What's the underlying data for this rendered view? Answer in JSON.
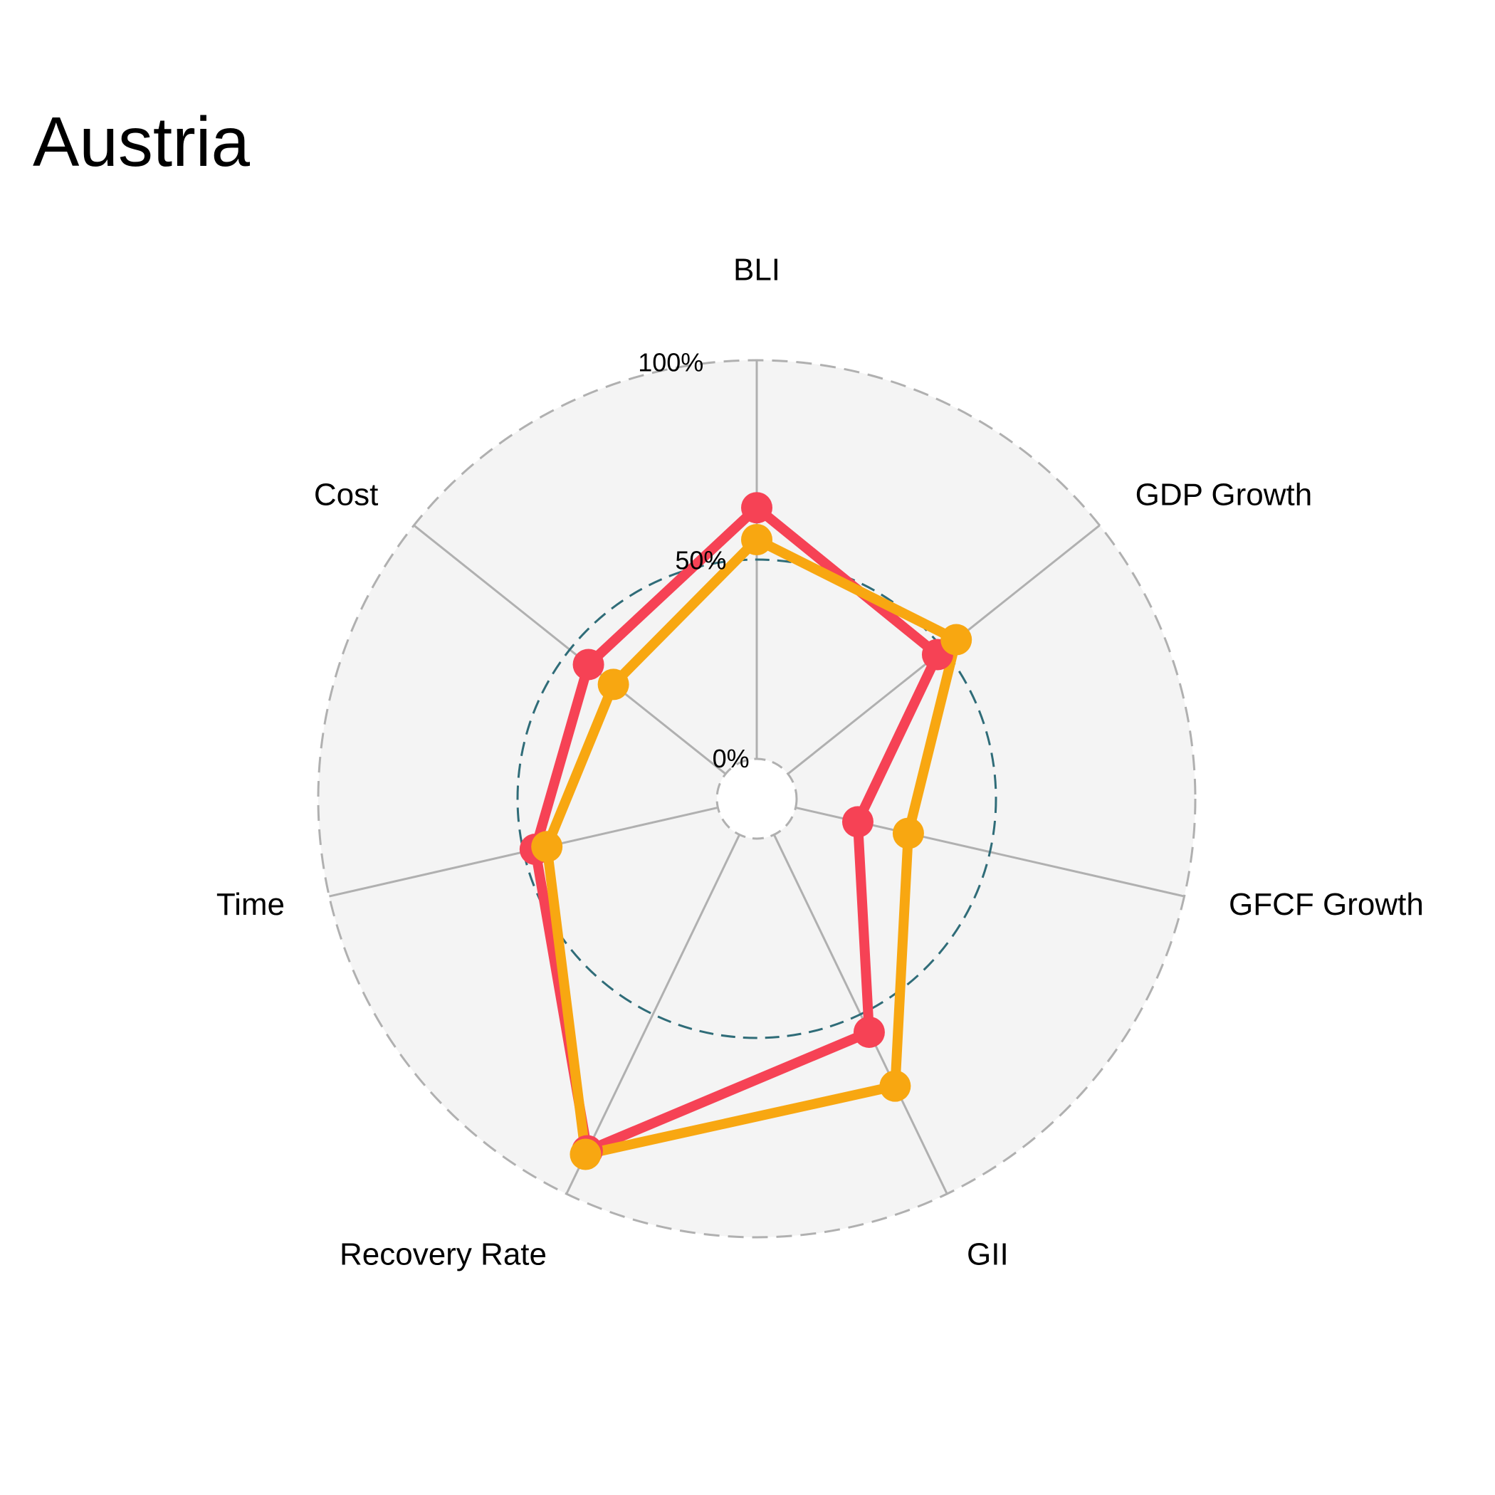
{
  "chart_data": {
    "type": "radar",
    "title": "Austria",
    "axes": [
      "BLI",
      "GDP Growth",
      "GFCF Growth",
      "GII",
      "Recovery Rate",
      "Time",
      "Cost"
    ],
    "radial_ticks": [
      {
        "value": 0,
        "label": "0%"
      },
      {
        "value": 50,
        "label": "50%"
      },
      {
        "value": 100,
        "label": "100%"
      }
    ],
    "rlim": [
      0,
      100
    ],
    "reference_ring": 50,
    "series": [
      {
        "color": "#f64255",
        "values": [
          63,
          48,
          16,
          55,
          88,
          47,
          44
        ]
      },
      {
        "color": "#f8a711",
        "values": [
          55,
          54,
          29,
          70,
          89,
          44,
          36
        ]
      }
    ]
  },
  "colors": {
    "panel_fill": "#f4f4f4",
    "grid": "#b0b0b0",
    "reference_ring": "#2f6c78"
  }
}
